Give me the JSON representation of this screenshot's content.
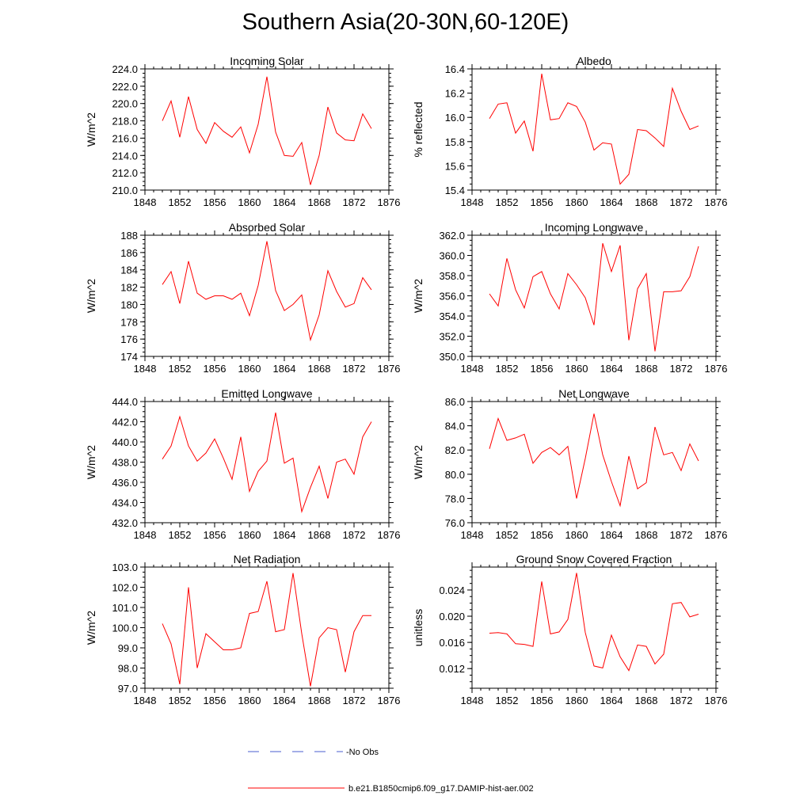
{
  "title": "Southern Asia(20-30N,60-120E)",
  "colors": {
    "model": "#ff0000",
    "obs": "#4a5ccf"
  },
  "legend": [
    {
      "label": "No Obs",
      "style": "dashed",
      "color": "#4a5ccf"
    },
    {
      "label": "b.e21.B1850cmip6.f09_g17.DAMIP-hist-aer.002",
      "style": "solid",
      "color": "#ff0000"
    }
  ],
  "chart_data": [
    {
      "type": "line",
      "title": "Incoming Solar",
      "ylabel": "W/m^2",
      "xlim": [
        1848,
        1876
      ],
      "ylim": [
        210,
        224
      ],
      "xticks": [
        "1848",
        "1852",
        "1856",
        "1860",
        "1864",
        "1868",
        "1872",
        "1876"
      ],
      "yticks": [
        "210.0",
        "212.0",
        "214.0",
        "216.0",
        "218.0",
        "220.0",
        "222.0",
        "224.0"
      ],
      "x": [
        1850,
        1851,
        1852,
        1853,
        1854,
        1855,
        1856,
        1857,
        1858,
        1859,
        1860,
        1861,
        1862,
        1863,
        1864,
        1865,
        1866,
        1867,
        1868,
        1869,
        1870,
        1871,
        1872,
        1873,
        1874
      ],
      "series": [
        {
          "name": "b.e21.B1850cmip6.f09_g17.DAMIP-hist-aer.002",
          "values": [
            218.0,
            220.3,
            216.1,
            220.8,
            217.0,
            215.4,
            217.8,
            216.8,
            216.1,
            217.3,
            214.3,
            217.6,
            223.1,
            216.7,
            214.0,
            213.9,
            215.5,
            210.6,
            214.0,
            219.6,
            216.6,
            215.8,
            215.7,
            218.8,
            217.1
          ]
        }
      ]
    },
    {
      "type": "line",
      "title": "Albedo",
      "ylabel": "% reflected",
      "xlim": [
        1848,
        1876
      ],
      "ylim": [
        15.4,
        16.4
      ],
      "xticks": [
        "1848",
        "1852",
        "1856",
        "1860",
        "1864",
        "1868",
        "1872",
        "1876"
      ],
      "yticks": [
        "15.4",
        "15.6",
        "15.8",
        "16.0",
        "16.2",
        "16.4"
      ],
      "x": [
        1850,
        1851,
        1852,
        1853,
        1854,
        1855,
        1856,
        1857,
        1858,
        1859,
        1860,
        1861,
        1862,
        1863,
        1864,
        1865,
        1866,
        1867,
        1868,
        1869,
        1870,
        1871,
        1872,
        1873,
        1874
      ],
      "series": [
        {
          "name": "b.e21.B1850cmip6.f09_g17.DAMIP-hist-aer.002",
          "values": [
            15.99,
            16.11,
            16.12,
            15.87,
            15.97,
            15.72,
            16.36,
            15.98,
            15.99,
            16.12,
            16.09,
            15.96,
            15.73,
            15.79,
            15.78,
            15.45,
            15.53,
            15.9,
            15.89,
            15.83,
            15.76,
            16.24,
            16.05,
            15.9,
            15.93
          ]
        }
      ]
    },
    {
      "type": "line",
      "title": "Absorbed Solar",
      "ylabel": "W/m^2",
      "xlim": [
        1848,
        1876
      ],
      "ylim": [
        174,
        188
      ],
      "xticks": [
        "1848",
        "1852",
        "1856",
        "1860",
        "1864",
        "1868",
        "1872",
        "1876"
      ],
      "yticks": [
        "174",
        "176",
        "178",
        "180",
        "182",
        "184",
        "186",
        "188"
      ],
      "x": [
        1850,
        1851,
        1852,
        1853,
        1854,
        1855,
        1856,
        1857,
        1858,
        1859,
        1860,
        1861,
        1862,
        1863,
        1864,
        1865,
        1866,
        1867,
        1868,
        1869,
        1870,
        1871,
        1872,
        1873,
        1874
      ],
      "series": [
        {
          "name": "b.e21.B1850cmip6.f09_g17.DAMIP-hist-aer.002",
          "values": [
            182.3,
            183.8,
            180.1,
            185.0,
            181.3,
            180.6,
            181.0,
            181.0,
            180.6,
            181.3,
            178.7,
            182.2,
            187.3,
            181.6,
            179.3,
            180.0,
            181.1,
            175.9,
            178.8,
            183.9,
            181.5,
            179.7,
            180.1,
            183.1,
            181.7
          ]
        }
      ]
    },
    {
      "type": "line",
      "title": "Incoming Longwave",
      "ylabel": "W/m^2",
      "xlim": [
        1848,
        1876
      ],
      "ylim": [
        350,
        362
      ],
      "xticks": [
        "1848",
        "1852",
        "1856",
        "1860",
        "1864",
        "1868",
        "1872",
        "1876"
      ],
      "yticks": [
        "350.0",
        "352.0",
        "354.0",
        "356.0",
        "358.0",
        "360.0",
        "362.0"
      ],
      "x": [
        1850,
        1851,
        1852,
        1853,
        1854,
        1855,
        1856,
        1857,
        1858,
        1859,
        1860,
        1861,
        1862,
        1863,
        1864,
        1865,
        1866,
        1867,
        1868,
        1869,
        1870,
        1871,
        1872,
        1873,
        1874
      ],
      "series": [
        {
          "name": "b.e21.B1850cmip6.f09_g17.DAMIP-hist-aer.002",
          "values": [
            356.2,
            355.0,
            359.7,
            356.6,
            354.8,
            357.9,
            358.4,
            356.2,
            354.7,
            358.2,
            357.1,
            355.8,
            353.1,
            361.2,
            358.4,
            361.0,
            351.6,
            356.7,
            358.2,
            350.5,
            356.4,
            356.4,
            356.5,
            357.9,
            360.9
          ]
        }
      ]
    },
    {
      "type": "line",
      "title": "Emitted Longwave",
      "ylabel": "W/m^2",
      "xlim": [
        1848,
        1876
      ],
      "ylim": [
        432,
        444
      ],
      "xticks": [
        "1848",
        "1852",
        "1856",
        "1860",
        "1864",
        "1868",
        "1872",
        "1876"
      ],
      "yticks": [
        "432.0",
        "434.0",
        "436.0",
        "438.0",
        "440.0",
        "442.0",
        "444.0"
      ],
      "x": [
        1850,
        1851,
        1852,
        1853,
        1854,
        1855,
        1856,
        1857,
        1858,
        1859,
        1860,
        1861,
        1862,
        1863,
        1864,
        1865,
        1866,
        1867,
        1868,
        1869,
        1870,
        1871,
        1872,
        1873,
        1874
      ],
      "series": [
        {
          "name": "b.e21.B1850cmip6.f09_g17.DAMIP-hist-aer.002",
          "values": [
            438.3,
            439.6,
            442.5,
            439.6,
            438.1,
            438.9,
            440.3,
            438.4,
            436.3,
            440.5,
            435.1,
            437.1,
            438.1,
            442.9,
            437.9,
            438.4,
            433.1,
            435.5,
            437.6,
            434.4,
            438.0,
            438.3,
            436.8,
            440.5,
            442.0
          ]
        }
      ]
    },
    {
      "type": "line",
      "title": "Net Longwave",
      "ylabel": "W/m^2",
      "xlim": [
        1848,
        1876
      ],
      "ylim": [
        76,
        86
      ],
      "xticks": [
        "1848",
        "1852",
        "1856",
        "1860",
        "1864",
        "1868",
        "1872",
        "1876"
      ],
      "yticks": [
        "76.0",
        "78.0",
        "80.0",
        "82.0",
        "84.0",
        "86.0"
      ],
      "x": [
        1850,
        1851,
        1852,
        1853,
        1854,
        1855,
        1856,
        1857,
        1858,
        1859,
        1860,
        1861,
        1862,
        1863,
        1864,
        1865,
        1866,
        1867,
        1868,
        1869,
        1870,
        1871,
        1872,
        1873,
        1874
      ],
      "series": [
        {
          "name": "b.e21.B1850cmip6.f09_g17.DAMIP-hist-aer.002",
          "values": [
            82.1,
            84.6,
            82.8,
            83.0,
            83.3,
            80.9,
            81.8,
            82.2,
            81.6,
            82.3,
            78.0,
            81.3,
            85.0,
            81.6,
            79.4,
            77.4,
            81.5,
            78.8,
            79.3,
            83.9,
            81.6,
            81.8,
            80.3,
            82.5,
            81.1
          ]
        }
      ]
    },
    {
      "type": "line",
      "title": "Net Radiation",
      "ylabel": "W/m^2",
      "xlim": [
        1848,
        1876
      ],
      "ylim": [
        97,
        103
      ],
      "xticks": [
        "1848",
        "1852",
        "1856",
        "1860",
        "1864",
        "1868",
        "1872",
        "1876"
      ],
      "yticks": [
        "97.0",
        "98.0",
        "99.0",
        "100.0",
        "101.0",
        "102.0",
        "103.0"
      ],
      "x": [
        1850,
        1851,
        1852,
        1853,
        1854,
        1855,
        1856,
        1857,
        1858,
        1859,
        1860,
        1861,
        1862,
        1863,
        1864,
        1865,
        1866,
        1867,
        1868,
        1869,
        1870,
        1871,
        1872,
        1873,
        1874
      ],
      "series": [
        {
          "name": "b.e21.B1850cmip6.f09_g17.DAMIP-hist-aer.002",
          "values": [
            100.2,
            99.2,
            97.2,
            102.0,
            98.0,
            99.7,
            99.3,
            98.9,
            98.9,
            99.0,
            100.7,
            100.8,
            102.3,
            99.8,
            99.9,
            102.7,
            99.7,
            97.1,
            99.5,
            100.0,
            99.9,
            97.8,
            99.8,
            100.6,
            100.6
          ]
        }
      ]
    },
    {
      "type": "line",
      "title": "Ground Snow Covered Fraction",
      "ylabel": "unitless",
      "xlim": [
        1848,
        1876
      ],
      "ylim": [
        0.009,
        0.0275
      ],
      "xticks": [
        "1848",
        "1852",
        "1856",
        "1860",
        "1864",
        "1868",
        "1872",
        "1876"
      ],
      "yticks": [
        "0.012",
        "0.016",
        "0.020",
        "0.024"
      ],
      "ytick_values": [
        0.012,
        0.016,
        0.02,
        0.024
      ],
      "x": [
        1850,
        1851,
        1852,
        1853,
        1854,
        1855,
        1856,
        1857,
        1858,
        1859,
        1860,
        1861,
        1862,
        1863,
        1864,
        1865,
        1866,
        1867,
        1868,
        1869,
        1870,
        1871,
        1872,
        1873,
        1874
      ],
      "series": [
        {
          "name": "b.e21.B1850cmip6.f09_g17.DAMIP-hist-aer.002",
          "values": [
            0.0174,
            0.0175,
            0.0173,
            0.0158,
            0.0157,
            0.0154,
            0.0253,
            0.0173,
            0.0176,
            0.0195,
            0.0266,
            0.0175,
            0.0124,
            0.0121,
            0.0171,
            0.0138,
            0.0117,
            0.0156,
            0.0154,
            0.0127,
            0.0142,
            0.0219,
            0.0221,
            0.0199,
            0.0203
          ]
        }
      ]
    }
  ]
}
